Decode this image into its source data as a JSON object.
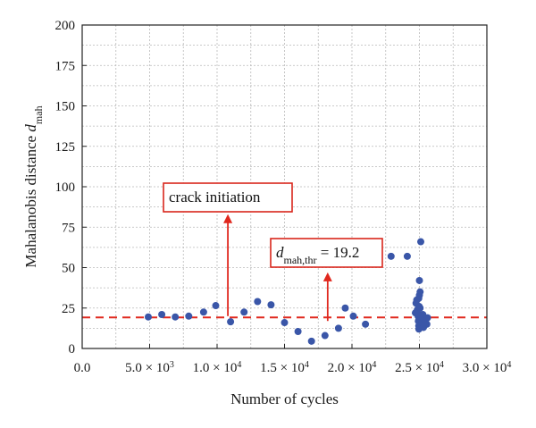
{
  "chart_data": {
    "type": "scatter",
    "title": "",
    "xlabel": "Number of cycles",
    "ylabel_main": "Mahalanobis distance ",
    "ylabel_var": "d",
    "ylabel_sub": "mah",
    "xlim": [
      0,
      30000
    ],
    "ylim": [
      0,
      200
    ],
    "grid": true,
    "x_tick_labels": [
      {
        "value": 0,
        "label": "0.0"
      },
      {
        "value": 5000,
        "mantissa": "5.0",
        "times": " × ",
        "base": "10",
        "exp": "3"
      },
      {
        "value": 10000,
        "mantissa": "1.0",
        "times": " × ",
        "base": "10",
        "exp": "4"
      },
      {
        "value": 15000,
        "mantissa": "1.5",
        "times": " × ",
        "base": "10",
        "exp": "4"
      },
      {
        "value": 20000,
        "mantissa": "2.0",
        "times": " × ",
        "base": "10",
        "exp": "4"
      },
      {
        "value": 25000,
        "mantissa": "2.5",
        "times": " × ",
        "base": "10",
        "exp": "4"
      },
      {
        "value": 30000,
        "mantissa": "3.0",
        "times": " × ",
        "base": "10",
        "exp": "4"
      }
    ],
    "y_ticks": [
      0,
      25,
      50,
      75,
      100,
      125,
      150,
      175,
      200
    ],
    "point_color": "#3a56a8",
    "threshold": {
      "value": 19.2,
      "color": "#e0281e",
      "label_var": "d",
      "label_sub": "mah,thr",
      "label_eq": " = 19.2"
    },
    "annotations": [
      {
        "text": "crack initiation",
        "arrow_x": 10800,
        "arrow_from": 20,
        "arrow_to": 83
      }
    ],
    "threshold_arrow": {
      "x": 18200,
      "from": 17,
      "to": 47
    },
    "series": [
      {
        "points": [
          [
            4900,
            19.5
          ],
          [
            5900,
            21
          ],
          [
            6900,
            19.5
          ],
          [
            7900,
            20
          ],
          [
            9000,
            22.5
          ],
          [
            9900,
            26.5
          ],
          [
            11000,
            16.5
          ],
          [
            12000,
            22.5
          ],
          [
            13000,
            29
          ],
          [
            14000,
            27
          ],
          [
            15000,
            16
          ],
          [
            16000,
            10.5
          ],
          [
            17000,
            4.5
          ],
          [
            18000,
            8
          ],
          [
            19000,
            12.5
          ],
          [
            19500,
            25
          ],
          [
            20100,
            20
          ],
          [
            21000,
            15
          ],
          [
            22900,
            57
          ],
          [
            24100,
            57
          ],
          [
            24700,
            22
          ],
          [
            24750,
            28
          ],
          [
            24800,
            30
          ],
          [
            24850,
            24
          ],
          [
            24900,
            20
          ],
          [
            24920,
            17
          ],
          [
            24950,
            14
          ],
          [
            24960,
            12
          ],
          [
            24980,
            26
          ],
          [
            25000,
            33
          ],
          [
            25000,
            42
          ],
          [
            25050,
            35
          ],
          [
            25080,
            18
          ],
          [
            25100,
            66
          ],
          [
            25150,
            19
          ],
          [
            25200,
            16
          ],
          [
            25250,
            21
          ],
          [
            25300,
            13
          ],
          [
            25350,
            18
          ],
          [
            25450,
            17
          ],
          [
            25550,
            15
          ],
          [
            25600,
            19
          ],
          [
            24850,
            22
          ],
          [
            24950,
            31
          ],
          [
            25050,
            25
          ]
        ]
      }
    ]
  }
}
